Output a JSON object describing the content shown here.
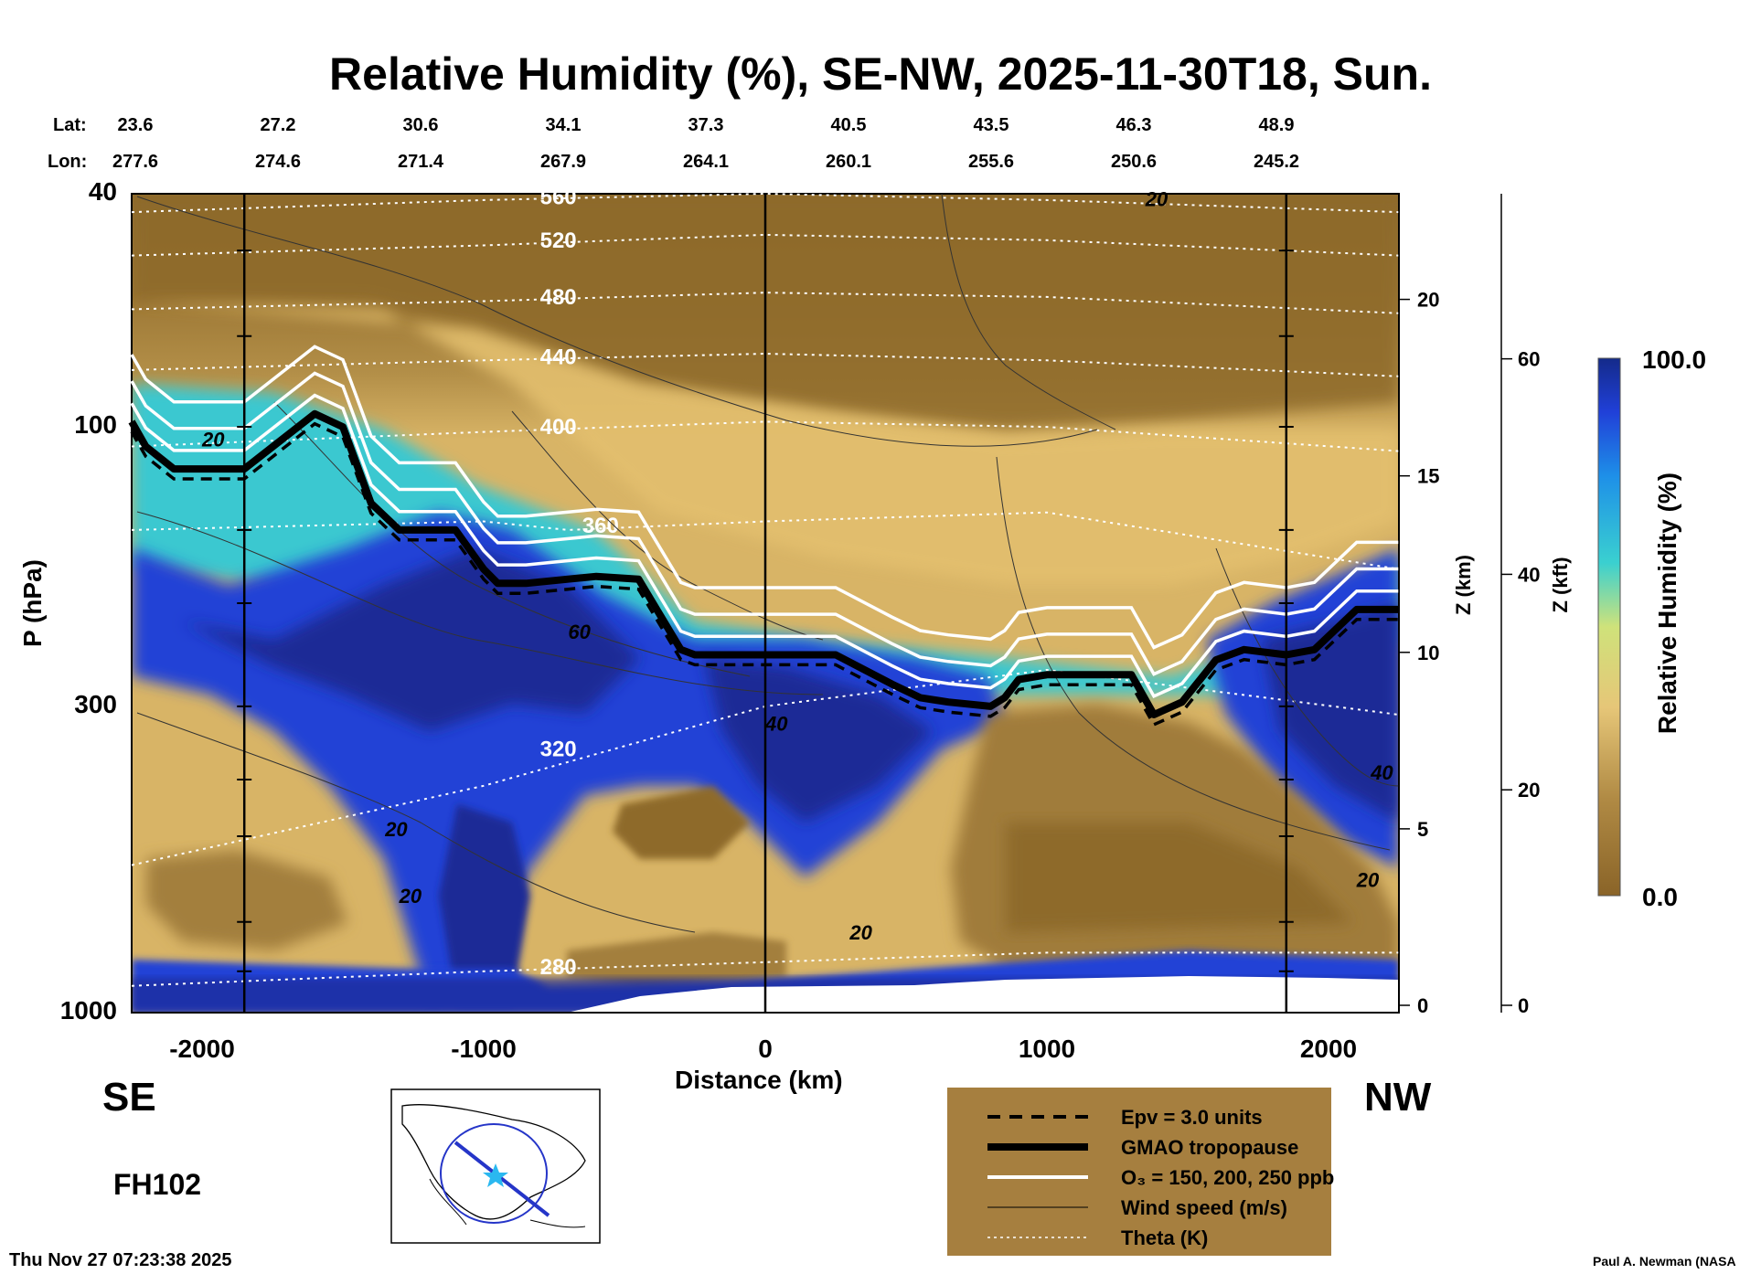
{
  "chart_data": {
    "type": "heatmap",
    "title": "Relative Humidity (%), SE-NW, 2025-11-30T18, Sun.",
    "xlabel": "Distance (km)",
    "ylabel": "P (hPa)",
    "ylabel_right_km": "Z (km)",
    "ylabel_right_kft": "Z (kft)",
    "xlim": [
      -2250,
      2250
    ],
    "ylim": [
      1000,
      40
    ],
    "y_scale": "log",
    "x_ticks": [
      "-2000",
      "-1000",
      "0",
      "1000",
      "2000"
    ],
    "y_ticks": [
      "40",
      "100",
      "300",
      "1000"
    ],
    "z_km_ticks": [
      "20",
      "15",
      "10",
      "5",
      "0"
    ],
    "z_kft_ticks": [
      "60",
      "40",
      "20",
      "0"
    ],
    "lat_label": "Lat:",
    "lon_label": "Lon:",
    "lat": [
      "23.6",
      "27.2",
      "30.6",
      "34.1",
      "37.3",
      "40.5",
      "43.5",
      "46.3",
      "48.9"
    ],
    "lon": [
      "277.6",
      "274.6",
      "271.4",
      "267.9",
      "264.1",
      "260.1",
      "255.6",
      "250.6",
      "245.2"
    ],
    "left_direction": "SE",
    "right_direction": "NW",
    "colorbar": {
      "label": "Relative Humidity (%)",
      "min": "0.0",
      "max": "100.0"
    },
    "tropopause_hpa": {
      "x": [
        -2250,
        -2200,
        -2100,
        -1850,
        -1600,
        -1500,
        -1400,
        -1300,
        -1100,
        -1000,
        -950,
        -850,
        -700,
        -600,
        -450,
        -300,
        -250,
        0,
        250,
        450,
        550,
        650,
        800,
        850,
        900,
        1000,
        1300,
        1380,
        1480,
        1600,
        1700,
        1850,
        1950,
        2100,
        2250
      ],
      "y": [
        98,
        108,
        118,
        118,
        95,
        100,
        135,
        150,
        150,
        175,
        185,
        185,
        182,
        180,
        182,
        240,
        245,
        245,
        245,
        275,
        290,
        295,
        300,
        290,
        270,
        265,
        265,
        310,
        295,
        250,
        240,
        245,
        240,
        205,
        205
      ]
    },
    "isentropes_K": [
      {
        "label": "280",
        "x": [
          -2250,
          -1000,
          0,
          1000,
          2250
        ],
        "y": [
          900,
          850,
          820,
          790,
          790
        ]
      },
      {
        "label": "320",
        "x": [
          -2250,
          -1000,
          0,
          1000,
          2250
        ],
        "y": [
          560,
          410,
          300,
          260,
          310
        ]
      },
      {
        "label": "360",
        "x": [
          -2250,
          -1000,
          -700,
          0,
          1000,
          2250
        ],
        "y": [
          150,
          145,
          150,
          145,
          140,
          175
        ]
      },
      {
        "label": "400",
        "x": [
          -2250,
          -1000,
          0,
          1000,
          2250
        ],
        "y": [
          108,
          102,
          98,
          100,
          110
        ]
      },
      {
        "label": "440",
        "x": [
          -2250,
          -1000,
          0,
          1000,
          2250
        ],
        "y": [
          80,
          77,
          75,
          77,
          82
        ]
      },
      {
        "label": "480",
        "x": [
          -2250,
          -1000,
          0,
          1000,
          2250
        ],
        "y": [
          63,
          61,
          59,
          60,
          64
        ]
      },
      {
        "label": "520",
        "x": [
          -2250,
          -1000,
          0,
          1000,
          2250
        ],
        "y": [
          51,
          49,
          47,
          48,
          51
        ]
      },
      {
        "label": "560",
        "x": [
          -2250,
          -1000,
          0,
          1000,
          2250
        ],
        "y": [
          43,
          41,
          40,
          41,
          43
        ]
      }
    ],
    "wind_labels": [
      "20",
      "20",
      "20",
      "60",
      "40",
      "20",
      "20",
      "40",
      "20"
    ],
    "vertical_markers_km": [
      -1850,
      0,
      1850
    ],
    "legend": [
      {
        "label": "Epv = 3.0 units",
        "style": "dashed-black"
      },
      {
        "label": "GMAO tropopause",
        "style": "thick-black"
      },
      {
        "label": "O₃ = 150, 200, 250 ppb",
        "style": "white"
      },
      {
        "label": "Wind speed (m/s)",
        "style": "thin-black"
      },
      {
        "label": "Theta (K)",
        "style": "dotted-white"
      }
    ],
    "legend_location": "bottom-right",
    "grid": false
  },
  "footer": {
    "forecast_hour": "FH102",
    "timestamp": "Thu Nov 27 07:23:38 2025",
    "credit": "Paul A. Newman (NASA"
  },
  "colors": {
    "dry": "#8a6428",
    "dry_mid": "#b08a44",
    "dry_light": "#e2c072",
    "mid": "#38c8c8",
    "wet": "#2048d8",
    "very_wet": "#15238a",
    "legend_bg": "#a67f3f"
  }
}
